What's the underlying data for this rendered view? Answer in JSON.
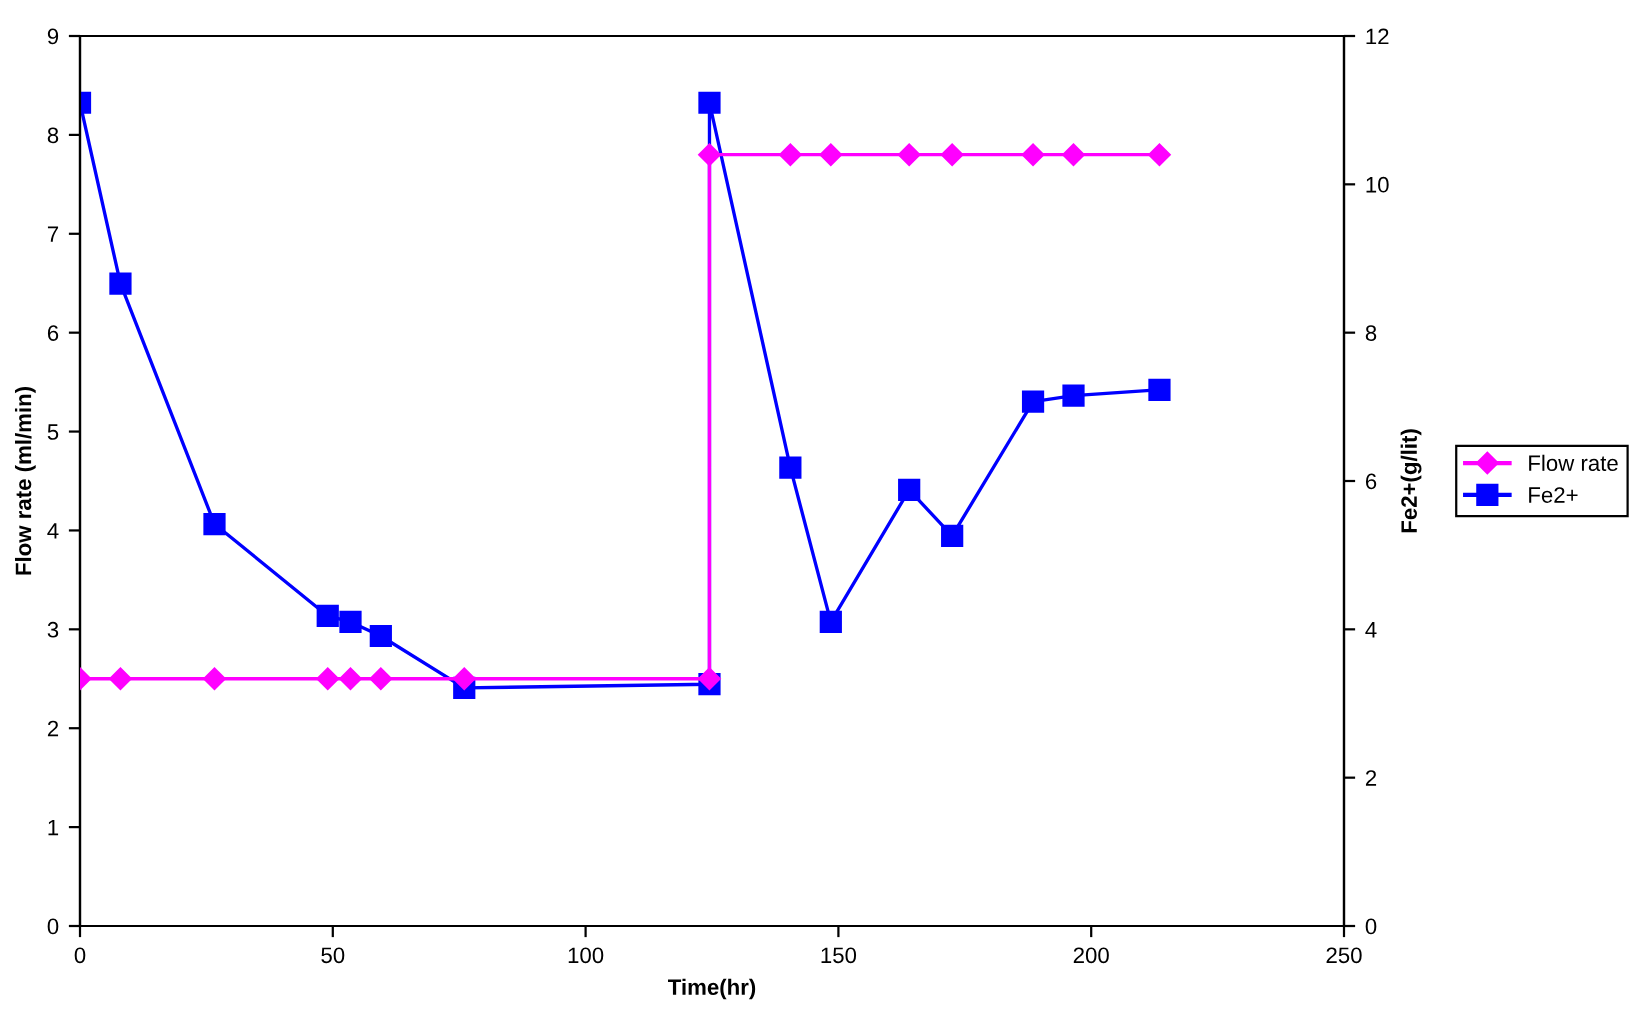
{
  "chart_data": {
    "type": "line",
    "xlabel": "Time(hr)",
    "ylabel": "Flow rate (ml/min)",
    "y2label": "Fe2+(g/lit)",
    "xlim": [
      0,
      250
    ],
    "xticks": [
      0,
      50,
      100,
      150,
      200,
      250
    ],
    "ylim": [
      0,
      9
    ],
    "yticks": [
      0,
      1,
      2,
      3,
      4,
      5,
      6,
      7,
      8,
      9
    ],
    "y2lim": [
      0,
      12
    ],
    "y2ticks": [
      0,
      2,
      4,
      6,
      8,
      10,
      12
    ],
    "grid": false,
    "legend": "right",
    "line_style": "solid",
    "series": [
      {
        "name": "Flow rate",
        "color": "#ff00ff",
        "marker": "diamond",
        "x": [
          0,
          8,
          26.6,
          49,
          53.5,
          59.5,
          76,
          124.5,
          124.5,
          140.5,
          148.5,
          164,
          172.5,
          188.5,
          196.5,
          213.5
        ],
        "values": [
          2.5,
          2.5,
          2.5,
          2.5,
          2.5,
          2.5,
          2.5,
          2.5,
          7.8,
          7.8,
          7.8,
          7.8,
          7.8,
          7.8,
          7.8,
          7.8
        ]
      },
      {
        "name": "Fe2+",
        "color": "#0000ff",
        "marker": "square",
        "axis": "y2",
        "x": [
          0,
          8,
          26.6,
          49,
          53.5,
          59.5,
          76,
          124.5,
          124.5,
          140.5,
          148.5,
          164,
          172.5,
          188.5,
          196.5,
          213.5
        ],
        "values": [
          11.1,
          8.66,
          5.42,
          4.18,
          4.1,
          3.91,
          3.21,
          3.26,
          11.1,
          6.18,
          4.1,
          5.88,
          5.26,
          7.07,
          7.15,
          7.23
        ]
      }
    ]
  }
}
